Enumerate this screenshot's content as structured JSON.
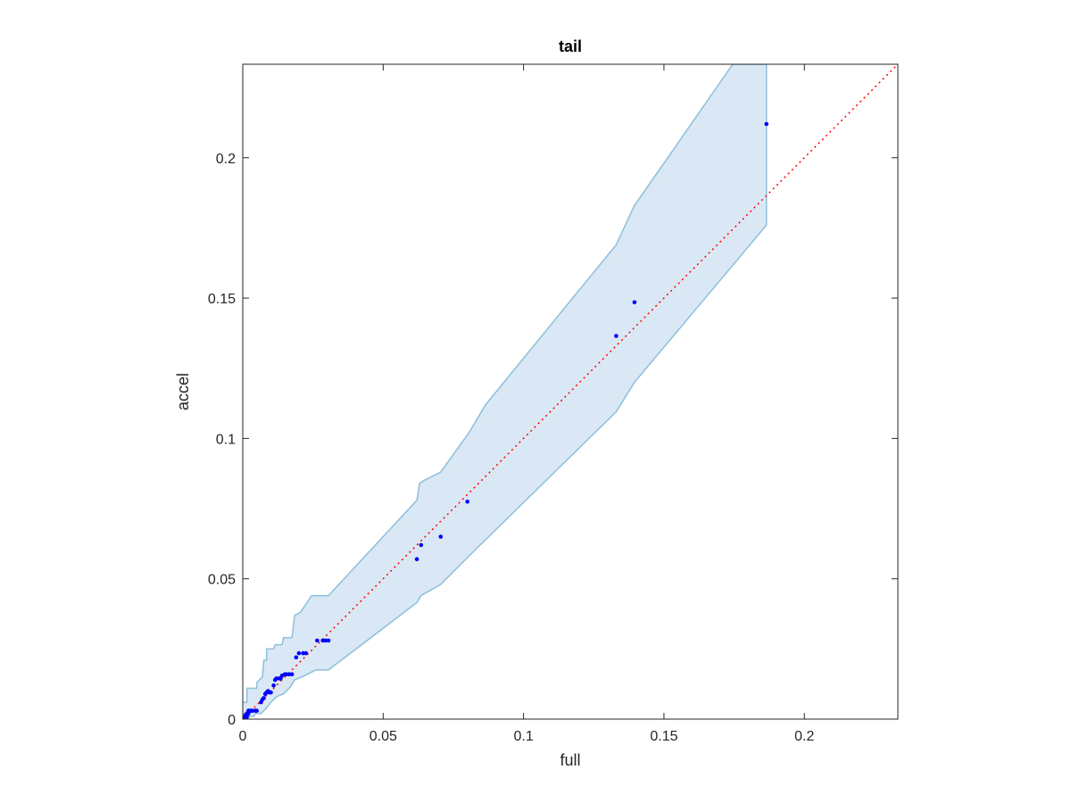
{
  "chart_data": {
    "type": "scatter",
    "title": "tail",
    "xlabel": "full",
    "ylabel": "accel",
    "xlim": [
      0,
      0.2333
    ],
    "ylim": [
      0,
      0.2333
    ],
    "xticks": [
      0,
      0.05,
      0.1,
      0.15,
      0.2
    ],
    "xtick_labels": [
      "0",
      "0.05",
      "0.1",
      "0.15",
      "0.2"
    ],
    "yticks": [
      0,
      0.05,
      0.1,
      0.15,
      0.2
    ],
    "ytick_labels": [
      "0",
      "0.05",
      "0.1",
      "0.15",
      "0.2"
    ],
    "grid": false,
    "box": true,
    "band": {
      "color": "#d9e8f4",
      "edge_color": "#8dbfdb",
      "upper": [
        [
          0.0,
          0.006
        ],
        [
          0.0015,
          0.006
        ],
        [
          0.0015,
          0.011
        ],
        [
          0.005,
          0.011
        ],
        [
          0.005,
          0.013
        ],
        [
          0.007,
          0.015
        ],
        [
          0.0075,
          0.021
        ],
        [
          0.0085,
          0.021
        ],
        [
          0.0085,
          0.025
        ],
        [
          0.011,
          0.025
        ],
        [
          0.0115,
          0.0265
        ],
        [
          0.014,
          0.0265
        ],
        [
          0.0145,
          0.029
        ],
        [
          0.0175,
          0.029
        ],
        [
          0.0185,
          0.037
        ],
        [
          0.0205,
          0.038
        ],
        [
          0.0245,
          0.044
        ],
        [
          0.0305,
          0.044
        ],
        [
          0.062,
          0.078
        ],
        [
          0.063,
          0.084
        ],
        [
          0.0645,
          0.085
        ],
        [
          0.0705,
          0.088
        ],
        [
          0.0805,
          0.102
        ],
        [
          0.0865,
          0.112
        ],
        [
          0.133,
          0.169
        ],
        [
          0.1395,
          0.183
        ],
        [
          0.1745,
          0.2333
        ],
        [
          0.1865,
          0.2333
        ]
      ],
      "lower": [
        [
          0.0,
          0.0
        ],
        [
          0.002,
          0.0
        ],
        [
          0.0025,
          0.001
        ],
        [
          0.004,
          0.001
        ],
        [
          0.0045,
          0.002
        ],
        [
          0.0065,
          0.002
        ],
        [
          0.0085,
          0.004
        ],
        [
          0.01,
          0.006
        ],
        [
          0.012,
          0.008
        ],
        [
          0.0145,
          0.009
        ],
        [
          0.017,
          0.0115
        ],
        [
          0.0185,
          0.014
        ],
        [
          0.021,
          0.015
        ],
        [
          0.026,
          0.0175
        ],
        [
          0.0305,
          0.0175
        ],
        [
          0.062,
          0.0415
        ],
        [
          0.0635,
          0.044
        ],
        [
          0.0705,
          0.048
        ],
        [
          0.08,
          0.0575
        ],
        [
          0.0835,
          0.061
        ],
        [
          0.133,
          0.1095
        ],
        [
          0.1395,
          0.12
        ],
        [
          0.1865,
          0.176
        ]
      ]
    },
    "series": [
      {
        "type": "reference-line",
        "style": "dotted",
        "color": "#ff0000",
        "x": [
          0,
          0.2333
        ],
        "y": [
          0,
          0.2333
        ]
      },
      {
        "type": "points",
        "color": "#0000ff",
        "x": [
          0.0002,
          0.0005,
          0.0008,
          0.001,
          0.0012,
          0.0015,
          0.0015,
          0.002,
          0.002,
          0.0025,
          0.003,
          0.0035,
          0.0045,
          0.005,
          0.0065,
          0.007,
          0.0075,
          0.008,
          0.0085,
          0.009,
          0.0095,
          0.01,
          0.011,
          0.0115,
          0.012,
          0.013,
          0.0135,
          0.014,
          0.015,
          0.0155,
          0.0165,
          0.0175,
          0.019,
          0.02,
          0.0215,
          0.0225,
          0.0265,
          0.0285,
          0.0295,
          0.0305,
          0.062,
          0.0635,
          0.0705,
          0.08,
          0.133,
          0.1395,
          0.1865
        ],
        "y": [
          0.0,
          0.0005,
          0.001,
          0.0015,
          0.0005,
          0.002,
          0.001,
          0.002,
          0.003,
          0.003,
          0.003,
          0.003,
          0.003,
          0.003,
          0.006,
          0.007,
          0.0075,
          0.009,
          0.0095,
          0.01,
          0.0095,
          0.0095,
          0.012,
          0.014,
          0.0145,
          0.0145,
          0.0145,
          0.0155,
          0.016,
          0.016,
          0.016,
          0.016,
          0.022,
          0.0235,
          0.0235,
          0.0235,
          0.028,
          0.028,
          0.028,
          0.028,
          0.057,
          0.062,
          0.065,
          0.0775,
          0.1365,
          0.1485,
          0.212
        ]
      }
    ]
  }
}
